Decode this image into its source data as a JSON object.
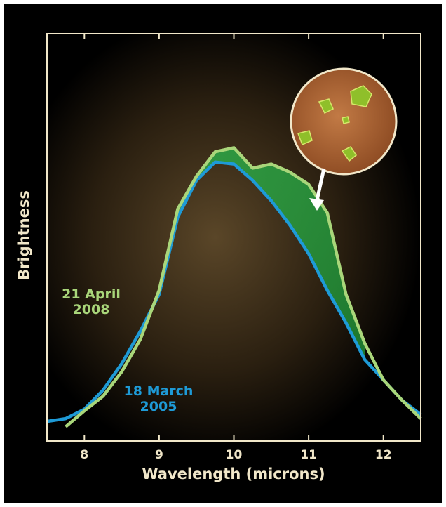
{
  "chart_data": {
    "type": "line",
    "xlabel": "Wavelength (microns)",
    "ylabel": "Brightness",
    "x": [
      7.5,
      7.75,
      8,
      8.25,
      8.5,
      8.75,
      9,
      9.25,
      9.5,
      9.75,
      10,
      10.25,
      10.5,
      10.75,
      11,
      11.25,
      11.5,
      11.75,
      12,
      12.25,
      12.5
    ],
    "series": [
      {
        "name": "21 April 2008",
        "color": "#a9d67a",
        "values": [
          null,
          3.5,
          7.4,
          11,
          17,
          25,
          37,
          57,
          65,
          71,
          72,
          67,
          68,
          66,
          63,
          56,
          36,
          24,
          15,
          10,
          5.5
        ]
      },
      {
        "name": "18 March 2005",
        "color": "#1e9ad6",
        "values": [
          4.8,
          5.5,
          7.8,
          12.5,
          19,
          27,
          36,
          55,
          64,
          68.5,
          68,
          64,
          59,
          53,
          46,
          37,
          29,
          20,
          15,
          10,
          6.5
        ]
      }
    ],
    "xlim": [
      7.5,
      12.5
    ],
    "xticks": [
      8,
      9,
      10,
      11,
      12
    ],
    "ylim": [
      0,
      100
    ]
  }
}
